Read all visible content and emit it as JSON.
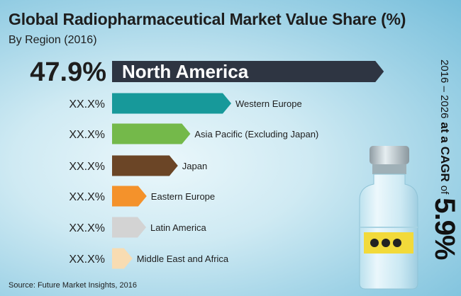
{
  "title": "Global Radiopharmaceutical Market Value Share (%)",
  "subtitle": "By Region (2016)",
  "source": "Source: Future Market Insights, 2016",
  "cagr": {
    "period": "2016 – 2026",
    "at_a": "at a",
    "cagr_label": "CAGR",
    "of": "of",
    "value": "5.9%"
  },
  "colors": {
    "north_america": "#2e3542",
    "western_europe": "#17999a",
    "asia_pacific": "#74b94a",
    "japan": "#6b4526",
    "eastern_europe": "#f4922b",
    "latin_america": "#d3d3d3",
    "middle_east_africa": "#f8dcb2"
  },
  "chart_data": {
    "type": "bar",
    "orientation": "horizontal",
    "categories": [
      "North America",
      "Western Europe",
      "Asia Pacific (Excluding Japan)",
      "Japan",
      "Eastern Europe",
      "Latin America",
      "Middle East and Africa"
    ],
    "value_labels": [
      "47.9%",
      "XX.X%",
      "XX.X%",
      "XX.X%",
      "XX.X%",
      "XX.X%",
      "XX.X%"
    ],
    "values": [
      47.9,
      21.0,
      13.8,
      11.6,
      6.1,
      6.0,
      3.6
    ]
  }
}
